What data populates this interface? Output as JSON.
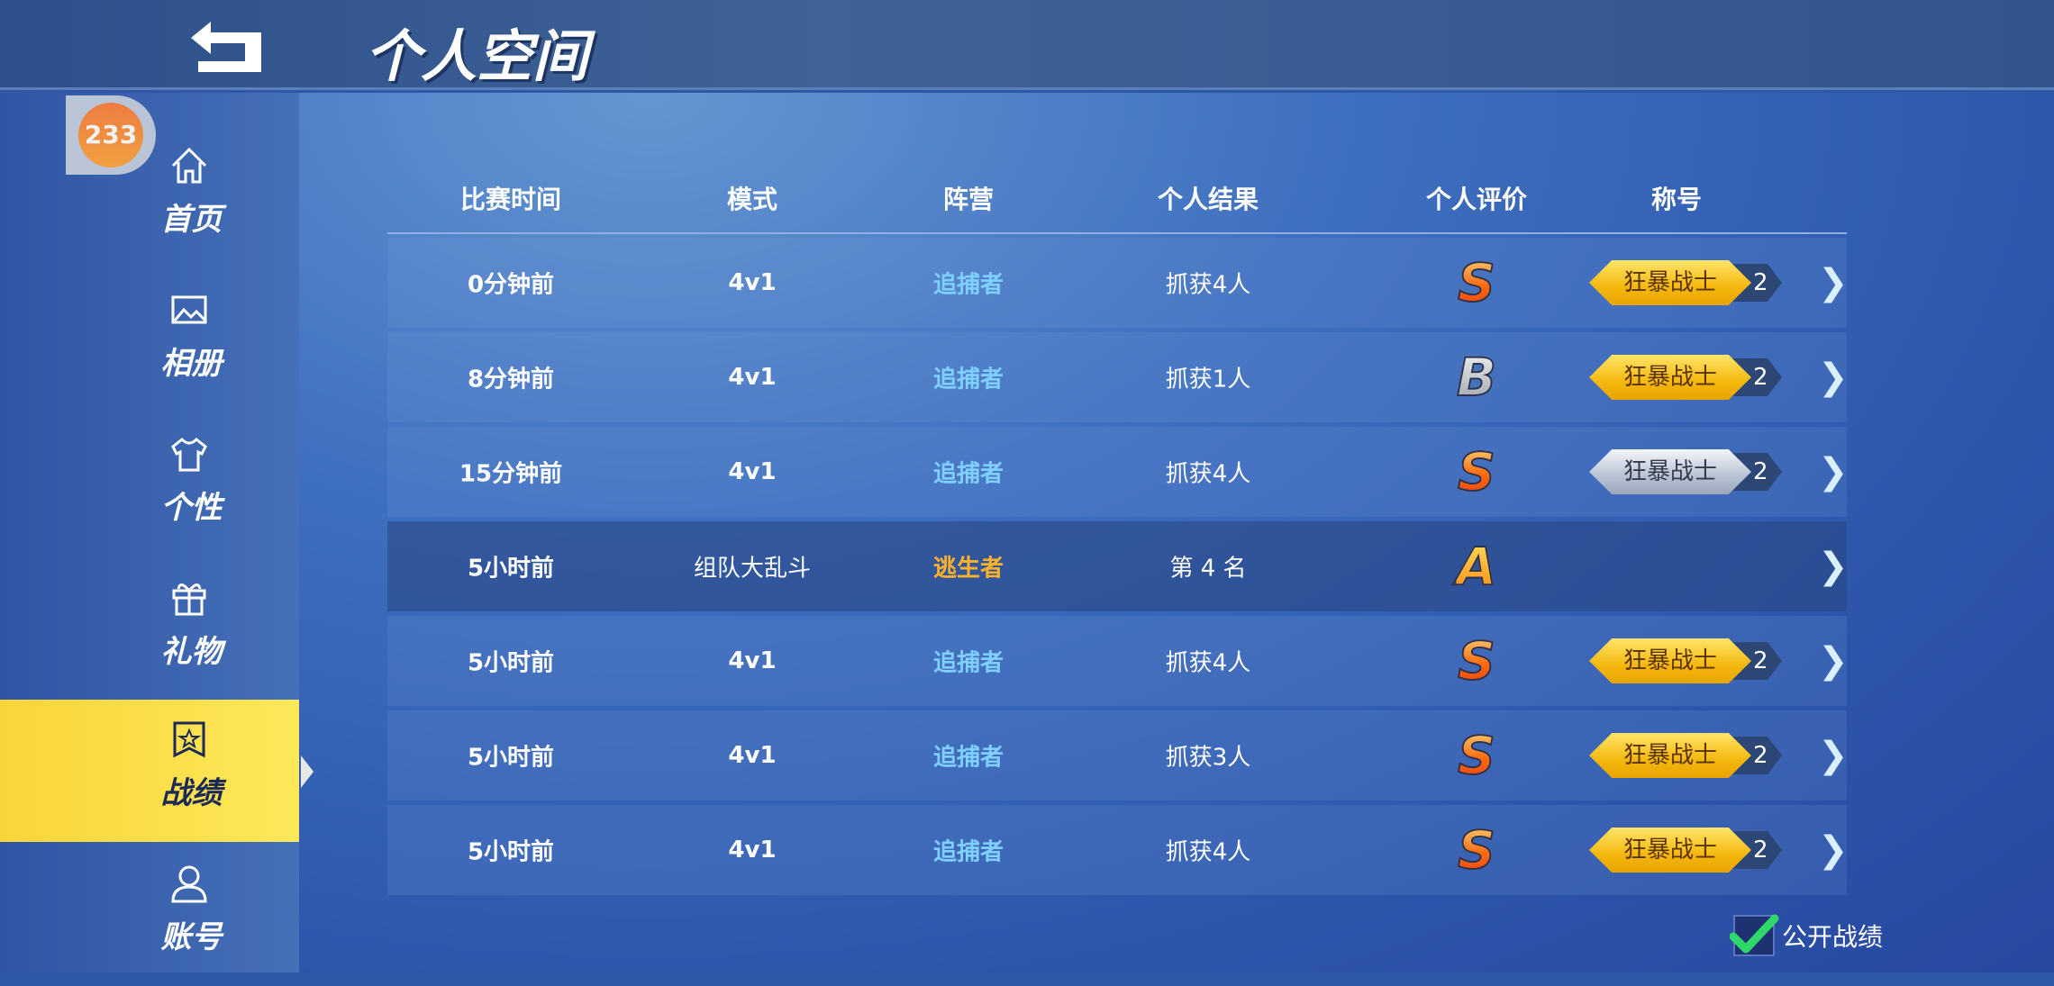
{
  "header": {
    "title": "个人空间",
    "back_icon": "back-arrow-icon"
  },
  "badge": {
    "value": "233"
  },
  "sidebar": {
    "items": [
      {
        "label": "首页",
        "icon": "home-icon"
      },
      {
        "label": "相册",
        "icon": "image-icon"
      },
      {
        "label": "个性",
        "icon": "shirt-icon"
      },
      {
        "label": "礼物",
        "icon": "gift-icon"
      },
      {
        "label": "战绩",
        "icon": "medal-icon",
        "active": true
      },
      {
        "label": "账号",
        "icon": "user-icon"
      }
    ]
  },
  "table": {
    "columns": [
      "比赛时间",
      "模式",
      "阵营",
      "个人结果",
      "个人评价",
      "称号"
    ],
    "rows": [
      {
        "time": "0分钟前",
        "mode": "4v1",
        "camp": "追捕者",
        "result": "抓获4人",
        "grade": "S",
        "title": "狂暴战士",
        "title_level": "2",
        "title_tier": "gold"
      },
      {
        "time": "8分钟前",
        "mode": "4v1",
        "camp": "追捕者",
        "result": "抓获1人",
        "grade": "B",
        "title": "狂暴战士",
        "title_level": "2",
        "title_tier": "gold"
      },
      {
        "time": "15分钟前",
        "mode": "4v1",
        "camp": "追捕者",
        "result": "抓获4人",
        "grade": "S",
        "title": "狂暴战士",
        "title_level": "2",
        "title_tier": "silver"
      },
      {
        "time": "5小时前",
        "mode": "组队大乱斗",
        "camp": "逃生者",
        "result": "第 4 名",
        "grade": "A",
        "title": "",
        "title_level": "",
        "title_tier": ""
      },
      {
        "time": "5小时前",
        "mode": "4v1",
        "camp": "追捕者",
        "result": "抓获4人",
        "grade": "S",
        "title": "狂暴战士",
        "title_level": "2",
        "title_tier": "gold"
      },
      {
        "time": "5小时前",
        "mode": "4v1",
        "camp": "追捕者",
        "result": "抓获3人",
        "grade": "S",
        "title": "狂暴战士",
        "title_level": "2",
        "title_tier": "gold"
      },
      {
        "time": "5小时前",
        "mode": "4v1",
        "camp": "追捕者",
        "result": "抓获4人",
        "grade": "S",
        "title": "狂暴战士",
        "title_level": "2",
        "title_tier": "gold"
      }
    ]
  },
  "public_record": {
    "label": "公开战绩",
    "checked": true
  },
  "colors": {
    "hunter": "#7fd0ff",
    "escaper": "#ffb22a",
    "active_tab": "#fde048"
  }
}
